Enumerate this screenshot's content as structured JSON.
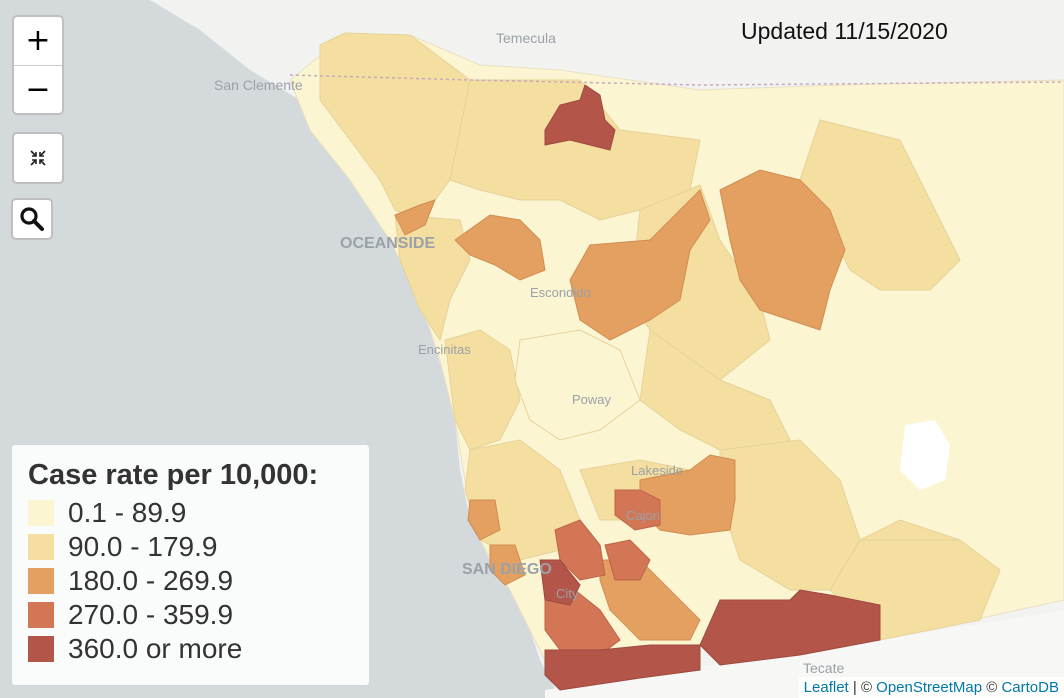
{
  "updated_text": "Updated 11/15/2020",
  "controls": {
    "zoom_in": "+",
    "zoom_out": "−"
  },
  "legend": {
    "title": "Case rate per 10,000:",
    "items": [
      {
        "label": "0.1 - 89.9",
        "color": "#fcf5d2"
      },
      {
        "label": "90.0 - 179.9",
        "color": "#f4dfa0"
      },
      {
        "label": "180.0 - 269.9",
        "color": "#e3a061"
      },
      {
        "label": "270.0 - 359.9",
        "color": "#d27655"
      },
      {
        "label": "360.0 or more",
        "color": "#b35549"
      }
    ]
  },
  "place_labels": {
    "temecula": "Temecula",
    "san_clemente": "San Clemente",
    "oceanside": "OCEANSIDE",
    "escondido": "Escondido",
    "encinitas": "Encinitas",
    "poway": "Poway",
    "lakeside": "Lakeside",
    "el_cajon": "Cajon",
    "san_diego": "SAN DIEGO",
    "national_city": "City",
    "tecate": "Tecate"
  },
  "attribution": {
    "leaflet": "Leaflet",
    "sep1": " | © ",
    "osm": "OpenStreetMap",
    "sep2": " © ",
    "carto": "CartoDB"
  },
  "colors": {
    "ocean": "#d4dadc",
    "land": "#f2f2f1",
    "mexico": "#f7f7f6"
  }
}
